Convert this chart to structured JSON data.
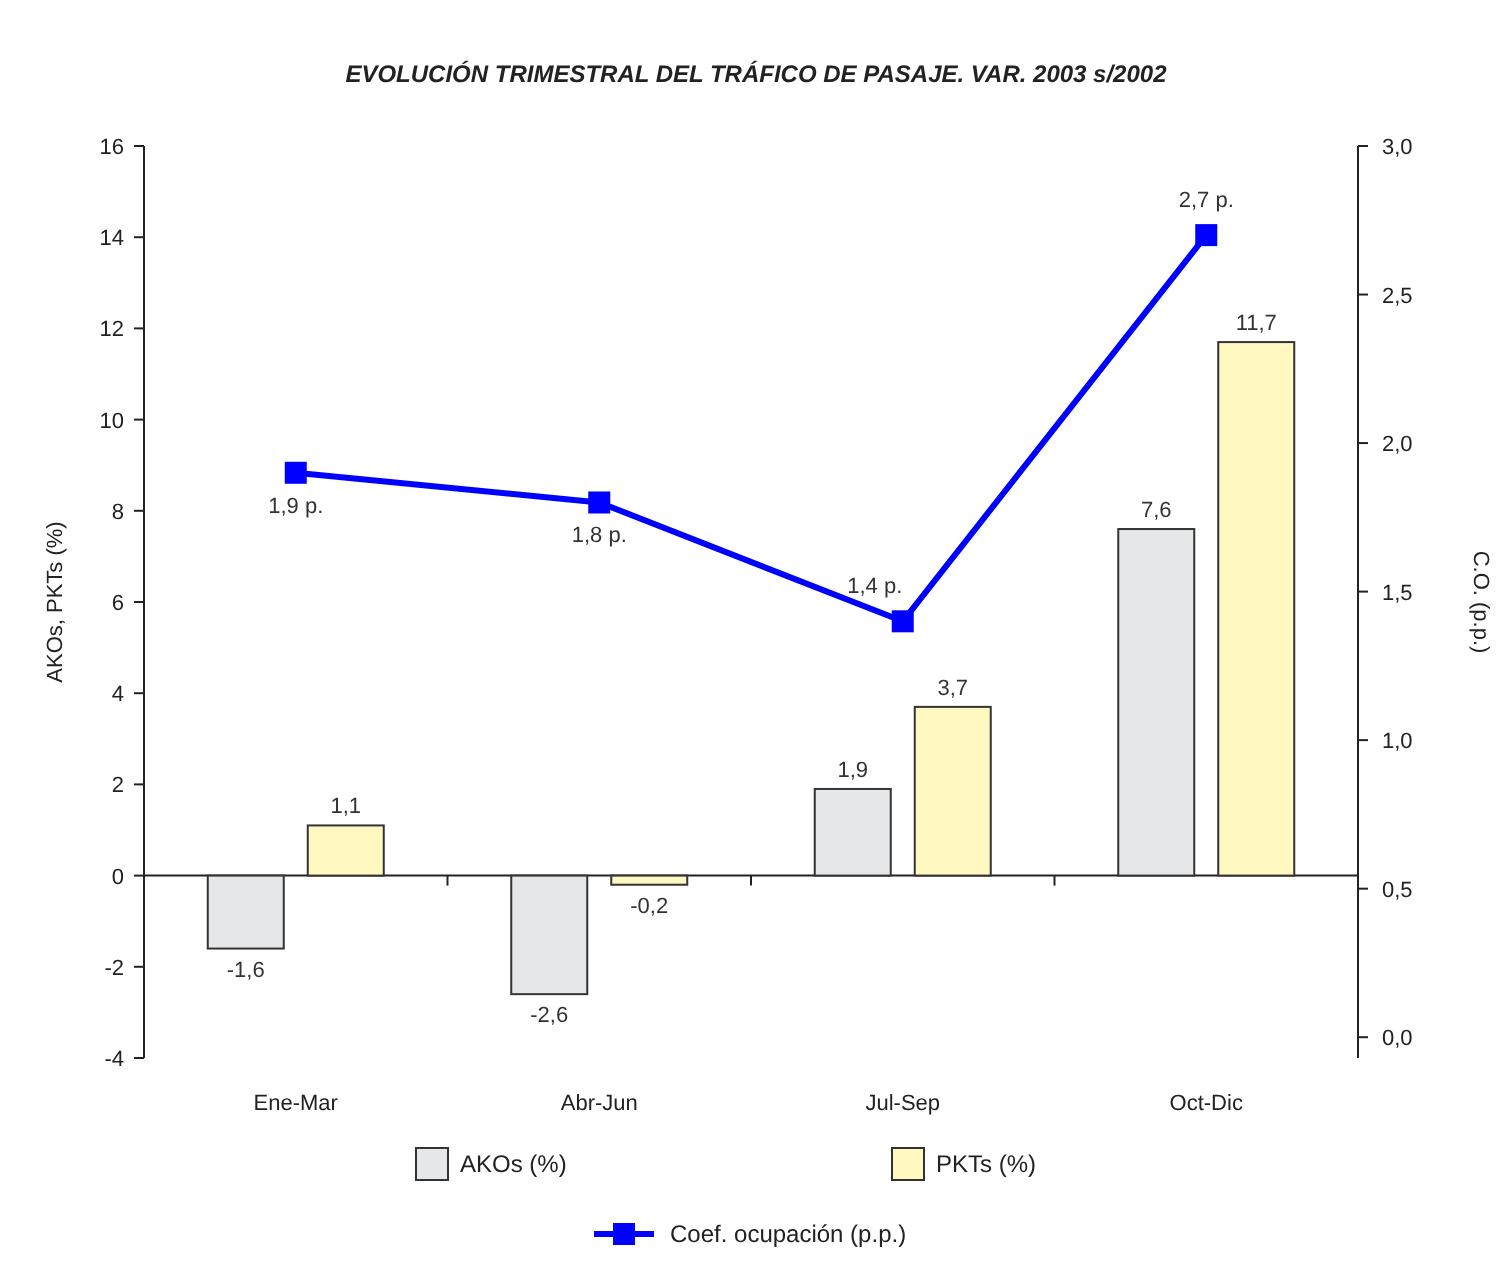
{
  "chart_data": {
    "type": "bar",
    "title": "EVOLUCIÓN TRIMESTRAL DEL TRÁFICO DE PASAJE. VAR. 2003 s/2002",
    "ylabel": "AKOs, PKTs (%)",
    "y2label": "C.O. (p.p.)",
    "categories": [
      "Ene-Mar",
      "Abr-Jun",
      "Jul-Sep",
      "Oct-Dic"
    ],
    "series": [
      {
        "name": "AKOs (%)",
        "color": "#e6e7e8",
        "values": [
          -1.6,
          -2.6,
          1.9,
          7.6
        ],
        "value_labels": [
          "-1,6",
          "-2,6",
          "1,9",
          "7,6"
        ]
      },
      {
        "name": "PKTs (%)",
        "color": "#fff8c0",
        "values": [
          1.1,
          -0.2,
          3.7,
          11.7
        ],
        "value_labels": [
          "1,1",
          "-0,2",
          "3,7",
          "11,7"
        ]
      },
      {
        "name": "Coef. ocupación (p.p.)",
        "type": "line",
        "axis": "y2",
        "color": "#0000ff",
        "marker": "square",
        "values": [
          1.9,
          1.8,
          1.4,
          2.7
        ],
        "value_labels": [
          "1,9 p.",
          "1,8 p.",
          "1,4 p.",
          "2,7 p."
        ]
      }
    ],
    "ylim": [
      -4,
      16
    ],
    "yticks": [
      -4,
      -2,
      0,
      2,
      4,
      6,
      8,
      10,
      12,
      14,
      16
    ],
    "y2lim": [
      -0.07,
      3.0
    ],
    "y2ticks": [
      {
        "value": 0,
        "label": "0,0"
      },
      {
        "value": 0.5,
        "label": "0,5"
      },
      {
        "value": 1,
        "label": "1,0"
      },
      {
        "value": 1.5,
        "label": "1,5"
      },
      {
        "value": 2,
        "label": "2,0"
      },
      {
        "value": 2.5,
        "label": "2,5"
      },
      {
        "value": 3,
        "label": "3,0"
      }
    ],
    "legend": "bottom"
  }
}
